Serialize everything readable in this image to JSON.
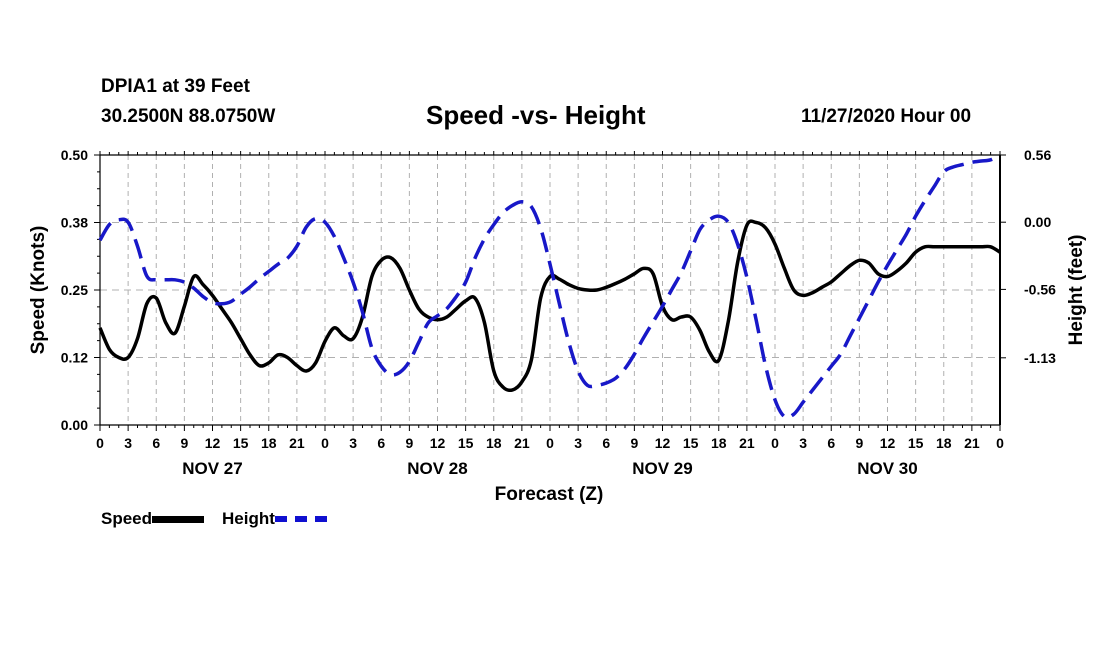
{
  "header": {
    "station": "DPIA1 at 39 Feet",
    "coords": "30.2500N 88.0750W",
    "title": "Speed -vs- Height",
    "datetime": "11/27/2020 Hour 00"
  },
  "legend": {
    "speed_label": "Speed",
    "height_label": "Height"
  },
  "colors": {
    "speed": "#000000",
    "height": "#1818c8",
    "grid": "#b0b0b0"
  },
  "chart_data": {
    "type": "line",
    "title": "Speed -vs- Height",
    "xlabel": "Forecast (Z)",
    "ylabel_left": "Speed (Knots)",
    "ylabel_right": "Height (feet)",
    "xlim": [
      0,
      96
    ],
    "ylim_left": [
      0.0,
      0.5
    ],
    "ylim_right": [
      -1.69,
      0.56
    ],
    "yticks_left": [
      "0.00",
      "0.12",
      "0.25",
      "0.38",
      "0.50"
    ],
    "yticks_left_values": [
      0.0,
      0.125,
      0.25,
      0.375,
      0.5
    ],
    "yticks_right": [
      "0.56",
      "0.00",
      "-0.56",
      "-1.13"
    ],
    "yticks_right_values": [
      0.56,
      0.0,
      -0.56,
      -1.13
    ],
    "xtick_hours": [
      0,
      3,
      6,
      9,
      12,
      15,
      18,
      21,
      24,
      27,
      30,
      33,
      36,
      39,
      42,
      45,
      48,
      51,
      54,
      57,
      60,
      63,
      66,
      69,
      72,
      75,
      78,
      81,
      84,
      87,
      90,
      93,
      96
    ],
    "xtick_labels": [
      "0",
      "3",
      "6",
      "9",
      "12",
      "15",
      "18",
      "21",
      "0",
      "3",
      "6",
      "9",
      "12",
      "15",
      "18",
      "21",
      "0",
      "3",
      "6",
      "9",
      "12",
      "15",
      "18",
      "21",
      "0",
      "3",
      "6",
      "9",
      "12",
      "15",
      "18",
      "21",
      "0"
    ],
    "day_labels": [
      {
        "hour": 12,
        "label": "NOV 27"
      },
      {
        "hour": 36,
        "label": "NOV 28"
      },
      {
        "hour": 60,
        "label": "NOV 29"
      },
      {
        "hour": 84,
        "label": "NOV 30"
      }
    ],
    "series": [
      {
        "name": "Speed",
        "axis": "left",
        "x": [
          0,
          1,
          2,
          3,
          4,
          5,
          6,
          7,
          8,
          9,
          10,
          11,
          12,
          13,
          14,
          15,
          16,
          17,
          18,
          19,
          20,
          21,
          22,
          23,
          24,
          25,
          26,
          27,
          28,
          29,
          30,
          31,
          32,
          33,
          34,
          35,
          36,
          37,
          38,
          39,
          40,
          41,
          42,
          43,
          44,
          45,
          46,
          47,
          48,
          49,
          50,
          51,
          52,
          53,
          54,
          55,
          56,
          57,
          58,
          59,
          60,
          61,
          62,
          63,
          64,
          65,
          66,
          67,
          68,
          69,
          70,
          71,
          72,
          73,
          74,
          75,
          76,
          77,
          78,
          79,
          80,
          81,
          82,
          83,
          84,
          85,
          86,
          87,
          88,
          89,
          90,
          91,
          92,
          93,
          94,
          95,
          96
        ],
        "values": [
          0.18,
          0.14,
          0.125,
          0.125,
          0.16,
          0.225,
          0.235,
          0.19,
          0.17,
          0.22,
          0.275,
          0.26,
          0.24,
          0.215,
          0.19,
          0.16,
          0.13,
          0.11,
          0.115,
          0.13,
          0.125,
          0.11,
          0.1,
          0.115,
          0.155,
          0.18,
          0.165,
          0.16,
          0.2,
          0.275,
          0.305,
          0.31,
          0.29,
          0.25,
          0.215,
          0.2,
          0.195,
          0.2,
          0.215,
          0.23,
          0.235,
          0.19,
          0.1,
          0.07,
          0.065,
          0.08,
          0.12,
          0.235,
          0.275,
          0.27,
          0.26,
          0.253,
          0.25,
          0.25,
          0.255,
          0.262,
          0.27,
          0.28,
          0.29,
          0.28,
          0.22,
          0.195,
          0.2,
          0.2,
          0.175,
          0.135,
          0.12,
          0.19,
          0.3,
          0.37,
          0.375,
          0.365,
          0.335,
          0.29,
          0.25,
          0.24,
          0.245,
          0.255,
          0.265,
          0.28,
          0.295,
          0.305,
          0.3,
          0.28,
          0.275,
          0.285,
          0.3,
          0.32,
          0.33,
          0.33,
          0.33,
          0.33,
          0.33,
          0.33,
          0.33,
          0.33,
          0.32
        ]
      },
      {
        "name": "Height",
        "axis": "right",
        "x": [
          0,
          1,
          2,
          3,
          4,
          5,
          6,
          7,
          8,
          9,
          10,
          11,
          12,
          13,
          14,
          15,
          16,
          17,
          18,
          19,
          20,
          21,
          22,
          23,
          24,
          25,
          26,
          27,
          28,
          29,
          30,
          31,
          32,
          33,
          34,
          35,
          36,
          37,
          38,
          39,
          40,
          41,
          42,
          43,
          44,
          45,
          46,
          47,
          48,
          49,
          50,
          51,
          52,
          53,
          54,
          55,
          56,
          57,
          58,
          59,
          60,
          61,
          62,
          63,
          64,
          65,
          66,
          67,
          68,
          69,
          70,
          71,
          72,
          73,
          74,
          75,
          76,
          77,
          78,
          79,
          80,
          81,
          82,
          83,
          84,
          85,
          86,
          87,
          88,
          89,
          90,
          91,
          92,
          93,
          94,
          95,
          96
        ],
        "values": [
          -0.15,
          -0.02,
          0.02,
          0.0,
          -0.2,
          -0.45,
          -0.48,
          -0.48,
          -0.48,
          -0.5,
          -0.55,
          -0.62,
          -0.67,
          -0.68,
          -0.66,
          -0.6,
          -0.54,
          -0.47,
          -0.41,
          -0.35,
          -0.3,
          -0.2,
          -0.04,
          0.03,
          0.0,
          -0.12,
          -0.3,
          -0.5,
          -0.75,
          -1.05,
          -1.2,
          -1.27,
          -1.25,
          -1.16,
          -1.0,
          -0.84,
          -0.78,
          -0.72,
          -0.62,
          -0.5,
          -0.3,
          -0.14,
          -0.02,
          0.08,
          0.14,
          0.17,
          0.13,
          -0.05,
          -0.35,
          -0.68,
          -1.0,
          -1.24,
          -1.36,
          -1.36,
          -1.34,
          -1.3,
          -1.22,
          -1.1,
          -0.96,
          -0.83,
          -0.7,
          -0.56,
          -0.42,
          -0.24,
          -0.06,
          0.02,
          0.05,
          0.0,
          -0.18,
          -0.46,
          -0.82,
          -1.2,
          -1.48,
          -1.62,
          -1.6,
          -1.5,
          -1.4,
          -1.3,
          -1.2,
          -1.1,
          -0.95,
          -0.8,
          -0.65,
          -0.5,
          -0.36,
          -0.23,
          -0.1,
          0.05,
          0.18,
          0.3,
          0.42,
          0.46,
          0.48,
          0.5,
          0.51,
          0.52,
          0.56
        ]
      }
    ]
  }
}
